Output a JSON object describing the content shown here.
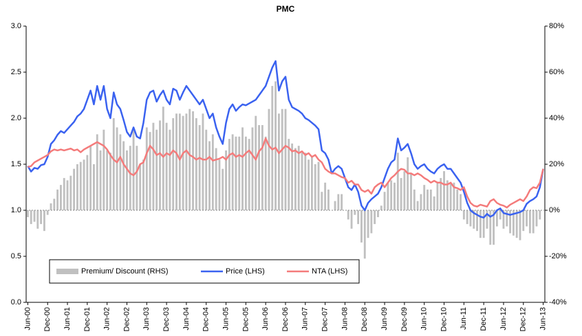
{
  "chart_data": {
    "type": "bar",
    "title": "PMC",
    "categories": [
      "Jun-00",
      null,
      null,
      null,
      null,
      null,
      "Dec-00",
      null,
      null,
      null,
      null,
      null,
      "Jun-01",
      null,
      null,
      null,
      null,
      null,
      "Dec-01",
      null,
      null,
      null,
      null,
      null,
      "Jun-02",
      null,
      null,
      null,
      null,
      null,
      "Dec-02",
      null,
      null,
      null,
      null,
      null,
      "Jun-03",
      null,
      null,
      null,
      null,
      null,
      "Dec-03",
      null,
      null,
      null,
      null,
      null,
      "Jun-04",
      null,
      null,
      null,
      null,
      null,
      "Dec-04",
      null,
      null,
      null,
      null,
      null,
      "Jun-05",
      null,
      null,
      null,
      null,
      null,
      "Dec-05",
      null,
      null,
      null,
      null,
      null,
      "Jun-06",
      null,
      null,
      null,
      null,
      null,
      "Dec-06",
      null,
      null,
      null,
      null,
      null,
      "Jun-07",
      null,
      null,
      null,
      null,
      null,
      "Dec-07",
      null,
      null,
      null,
      null,
      null,
      "Jun-08",
      null,
      null,
      null,
      null,
      null,
      "Dec-08",
      null,
      null,
      null,
      null,
      null,
      "Jun-09",
      null,
      null,
      null,
      null,
      null,
      "Dec-09",
      null,
      null,
      null,
      null,
      null,
      "Jun-10",
      null,
      null,
      null,
      null,
      null,
      "Dec-10",
      null,
      null,
      null,
      null,
      null,
      "Jun-11",
      null,
      null,
      null,
      null,
      null,
      "Dec-11",
      null,
      null,
      null,
      null,
      null,
      "Jun-12",
      null,
      null,
      null,
      null,
      null,
      "Dec-12",
      null,
      null,
      null,
      null,
      null,
      "Jun-13"
    ],
    "series": [
      {
        "name": "Premium/ Discount (RHS)",
        "type": "bar",
        "axis": "y2",
        "color": "#c0c0c0",
        "values": [
          -3,
          -6,
          -5,
          -8,
          -6,
          -9,
          -2,
          3,
          5,
          9,
          11,
          14,
          13,
          15,
          18,
          20,
          21,
          22,
          24,
          28,
          20,
          33,
          26,
          35,
          26,
          25,
          40,
          36,
          33,
          30,
          26,
          28,
          35,
          28,
          20,
          22,
          36,
          34,
          38,
          35,
          39,
          45,
          38,
          35,
          40,
          42,
          42,
          41,
          42,
          44,
          43,
          40,
          37,
          42,
          35,
          30,
          33,
          27,
          22,
          18,
          26,
          31,
          33,
          32,
          32,
          36,
          32,
          31,
          36,
          41,
          37,
          37,
          32,
          44,
          54,
          56,
          42,
          44,
          44,
          31,
          29,
          27,
          28,
          25,
          25,
          22,
          23,
          20,
          21,
          8,
          12,
          9,
          0,
          4,
          7,
          7,
          0,
          -4,
          -8,
          -2,
          -6,
          -14,
          -21,
          -12,
          -10,
          -6,
          -3,
          2,
          8,
          12,
          13,
          12,
          25,
          14,
          17,
          23,
          16,
          9,
          4,
          7,
          11,
          9,
          9,
          6,
          12,
          14,
          17,
          13,
          12,
          12,
          9,
          7,
          -4,
          -6,
          -7,
          -8,
          -9,
          -12,
          -12,
          -8,
          -15,
          -15,
          -7,
          -4,
          -8,
          -7,
          -10,
          -11,
          -12,
          -13,
          -9,
          -7,
          -10,
          -10,
          -7,
          -4,
          0
        ]
      },
      {
        "name": "Price (LHS)",
        "type": "line",
        "color": "#3a62f0",
        "values": [
          1.48,
          1.42,
          1.46,
          1.45,
          1.49,
          1.5,
          1.58,
          1.72,
          1.76,
          1.82,
          1.86,
          1.84,
          1.88,
          1.92,
          1.96,
          2.02,
          2.05,
          2.1,
          2.2,
          2.3,
          2.15,
          2.35,
          2.2,
          2.35,
          2.1,
          2.0,
          2.28,
          2.15,
          2.1,
          1.98,
          1.85,
          1.8,
          1.9,
          1.8,
          1.78,
          1.95,
          2.2,
          2.28,
          2.3,
          2.18,
          2.25,
          2.3,
          2.2,
          2.15,
          2.32,
          2.3,
          2.2,
          2.28,
          2.35,
          2.3,
          2.25,
          2.2,
          2.15,
          2.2,
          2.1,
          2.0,
          2.05,
          1.9,
          1.8,
          1.72,
          1.95,
          2.1,
          2.15,
          2.08,
          2.12,
          2.15,
          2.14,
          2.16,
          2.18,
          2.2,
          2.25,
          2.3,
          2.35,
          2.45,
          2.55,
          2.62,
          2.3,
          2.4,
          2.45,
          2.2,
          2.12,
          2.1,
          2.08,
          2.05,
          2.0,
          1.98,
          1.95,
          1.92,
          1.88,
          1.65,
          1.62,
          1.55,
          1.4,
          1.45,
          1.48,
          1.45,
          1.35,
          1.25,
          1.22,
          1.28,
          1.2,
          1.05,
          1.0,
          1.08,
          1.12,
          1.15,
          1.18,
          1.25,
          1.35,
          1.45,
          1.52,
          1.55,
          1.78,
          1.65,
          1.68,
          1.72,
          1.62,
          1.5,
          1.45,
          1.48,
          1.5,
          1.45,
          1.42,
          1.4,
          1.45,
          1.48,
          1.5,
          1.45,
          1.45,
          1.4,
          1.35,
          1.3,
          1.2,
          1.08,
          1.0,
          0.97,
          0.95,
          0.93,
          0.92,
          0.96,
          0.93,
          0.95,
          1.0,
          1.02,
          0.97,
          0.96,
          0.95,
          0.96,
          0.97,
          0.98,
          1.0,
          1.07,
          1.1,
          1.12,
          1.15,
          1.25,
          1.45
        ]
      },
      {
        "name": "NTA (LHS)",
        "type": "line",
        "color": "#f47b7b",
        "values": [
          1.47,
          1.48,
          1.52,
          1.54,
          1.56,
          1.58,
          1.6,
          1.64,
          1.66,
          1.65,
          1.66,
          1.65,
          1.66,
          1.67,
          1.65,
          1.66,
          1.63,
          1.66,
          1.68,
          1.7,
          1.72,
          1.74,
          1.72,
          1.7,
          1.66,
          1.6,
          1.55,
          1.52,
          1.58,
          1.5,
          1.45,
          1.4,
          1.38,
          1.42,
          1.5,
          1.52,
          1.62,
          1.7,
          1.66,
          1.6,
          1.62,
          1.58,
          1.62,
          1.6,
          1.65,
          1.62,
          1.55,
          1.62,
          1.65,
          1.6,
          1.58,
          1.55,
          1.57,
          1.55,
          1.55,
          1.58,
          1.54,
          1.55,
          1.56,
          1.58,
          1.55,
          1.6,
          1.62,
          1.58,
          1.6,
          1.58,
          1.62,
          1.65,
          1.6,
          1.55,
          1.64,
          1.68,
          1.78,
          1.7,
          1.66,
          1.68,
          1.62,
          1.66,
          1.7,
          1.68,
          1.64,
          1.65,
          1.62,
          1.64,
          1.6,
          1.62,
          1.58,
          1.6,
          1.55,
          1.52,
          1.45,
          1.42,
          1.4,
          1.4,
          1.38,
          1.36,
          1.35,
          1.3,
          1.32,
          1.28,
          1.28,
          1.22,
          1.2,
          1.22,
          1.18,
          1.25,
          1.28,
          1.3,
          1.25,
          1.3,
          1.35,
          1.38,
          1.42,
          1.45,
          1.44,
          1.4,
          1.4,
          1.38,
          1.4,
          1.38,
          1.35,
          1.33,
          1.3,
          1.32,
          1.3,
          1.3,
          1.28,
          1.28,
          1.3,
          1.25,
          1.24,
          1.22,
          1.25,
          1.15,
          1.08,
          1.05,
          1.04,
          1.06,
          1.05,
          1.04,
          1.1,
          1.12,
          1.08,
          1.06,
          1.05,
          1.03,
          1.06,
          1.08,
          1.1,
          1.12,
          1.1,
          1.15,
          1.22,
          1.25,
          1.24,
          1.3,
          1.45
        ]
      }
    ],
    "ylim": [
      0,
      3
    ],
    "yticks": [
      {
        "value": 0,
        "label": "0.0"
      },
      {
        "value": 0.5,
        "label": "0.5"
      },
      {
        "value": 1,
        "label": "1.0"
      },
      {
        "value": 1.5,
        "label": "1.5"
      },
      {
        "value": 2,
        "label": "2.0"
      },
      {
        "value": 2.5,
        "label": "2.5"
      },
      {
        "value": 3,
        "label": "3.0"
      }
    ],
    "y2lim": [
      -40,
      80
    ],
    "y2ticks": [
      {
        "value": -40,
        "label": "-40%"
      },
      {
        "value": -20,
        "label": "-20%"
      },
      {
        "value": 0,
        "label": "0%"
      },
      {
        "value": 20,
        "label": "20%"
      },
      {
        "value": 40,
        "label": "40%"
      },
      {
        "value": 60,
        "label": "60%"
      },
      {
        "value": 80,
        "label": "80%"
      }
    ],
    "legend": "lower left"
  }
}
